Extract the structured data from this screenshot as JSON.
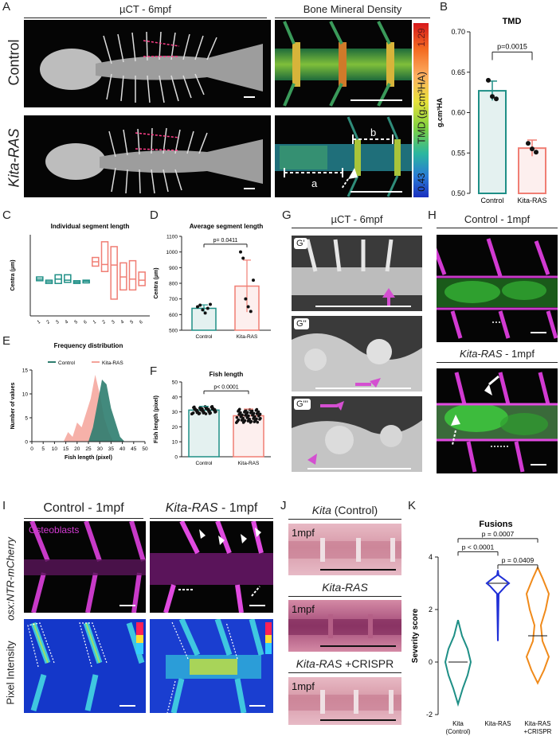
{
  "panel_labels": {
    "A": "A",
    "B": "B",
    "C": "C",
    "D": "D",
    "E": "E",
    "F": "F",
    "G": "G",
    "H": "H",
    "I": "I",
    "J": "J",
    "K": "K"
  },
  "panelA": {
    "header_left": "µCT - 6mpf",
    "header_right": "Bone Mineral Density",
    "row_control": "Control",
    "row_kita": "Kita-RAS",
    "colorbar_label": "TMD (g.cm³HA)",
    "colorbar_max": "1.29",
    "colorbar_min": "0.43",
    "annot_a": "a",
    "annot_b": "b"
  },
  "panelG": {
    "header": "µCT - 6mpf",
    "sub1": "G'",
    "sub2": "G''",
    "sub3": "G'''"
  },
  "panelH": {
    "top": "Control - 1mpf",
    "bottom_it": "Kita-RAS",
    "bottom_rest": " - 1mpf"
  },
  "panelI": {
    "header_left": "Control - 1mpf",
    "header_right_it": "Kita-RAS",
    "header_right_rest": " - 1mpf",
    "row1": "osx:NTR-mCherry",
    "row2": "Pixel Intensity",
    "osteo": "Osteoblasts"
  },
  "panelJ": {
    "h1_it": "Kita",
    "h1_rest": " (Control)",
    "h2": "Kita-RAS",
    "h3_it": "Kita-RAS",
    "h3_rest": " +CRISPR",
    "tag": "1mpf"
  },
  "chart_data": [
    {
      "id": "B",
      "type": "bar",
      "title": "TMD",
      "categories": [
        "Control",
        "Kita-RAS"
      ],
      "values": [
        0.627,
        0.556
      ],
      "errors": [
        0.012,
        0.01
      ],
      "points": [
        [
          0.64,
          0.62,
          0.617
        ],
        [
          0.562,
          0.555,
          0.551
        ]
      ],
      "ylabel": "g.cm³HA",
      "ylim": [
        0.5,
        0.7
      ],
      "yticks": [
        "0.50",
        "0.55",
        "0.60",
        "0.65",
        "0.70"
      ],
      "annotation": "p=0.0015",
      "colors": [
        "#1e8f86",
        "#f07e74"
      ]
    },
    {
      "id": "C",
      "type": "box",
      "title": "Individual segment length",
      "ylabel": "Centra (µm)",
      "ylim": [
        0,
        1500
      ],
      "yticks": [],
      "categories": [
        "1",
        "2",
        "3",
        "4",
        "5",
        "6",
        "1",
        "2",
        "3",
        "4",
        "5",
        "6"
      ],
      "series": [
        {
          "name": "Control",
          "boxes": [
            [
              680,
              650,
              720
            ],
            [
              630,
              600,
              660
            ],
            [
              680,
              600,
              760
            ],
            [
              660,
              620,
              760
            ],
            [
              625,
              600,
              650
            ],
            [
              640,
              610,
              660
            ]
          ]
        },
        {
          "name": "Kita-RAS",
          "boxes": [
            [
              1000,
              920,
              1080
            ],
            [
              950,
              820,
              1370
            ],
            [
              940,
              310,
              1280
            ],
            [
              720,
              480,
              980
            ],
            [
              680,
              480,
              1020
            ],
            [
              660,
              560,
              810
            ]
          ]
        }
      ]
    },
    {
      "id": "D",
      "type": "bar",
      "title": "Average segment length",
      "categories": [
        "Control",
        "Kita-RAS"
      ],
      "values": [
        640,
        782
      ],
      "errors": [
        22,
        166
      ],
      "points": [
        [
          650,
          660,
          630,
          610,
          640,
          665
        ],
        [
          1000,
          960,
          700,
          650,
          620,
          820
        ]
      ],
      "ylabel": "Centra (µm)",
      "ylim": [
        500,
        1100
      ],
      "yticks": [
        "500",
        "600",
        "700",
        "800",
        "900",
        "1000",
        "1100"
      ],
      "annotation": "p= 0.0411",
      "colors": [
        "#1e8f86",
        "#f07e74"
      ]
    },
    {
      "id": "E",
      "type": "area",
      "title": "Frequency distribution",
      "xlabel": "Fish length (pixel)",
      "ylabel": "Number of values",
      "xlim": [
        0,
        50
      ],
      "ylim": [
        0,
        15
      ],
      "xticks": [
        "0",
        "5",
        "10",
        "15",
        "20",
        "25",
        "30",
        "35",
        "40",
        "45",
        "50"
      ],
      "yticks": [
        "0",
        "5",
        "10",
        "15"
      ],
      "series": [
        {
          "name": "Control",
          "x": [
            25,
            27,
            29,
            31,
            33,
            35,
            37,
            39,
            41
          ],
          "y": [
            0,
            3,
            8,
            13,
            12,
            7,
            4,
            1,
            0
          ],
          "color": "#2e7d6f"
        },
        {
          "name": "Kita-RAS",
          "x": [
            14,
            16,
            18,
            20,
            22,
            24,
            26,
            28,
            30,
            32,
            34,
            36
          ],
          "y": [
            0,
            2,
            1,
            4,
            3,
            6,
            9,
            14,
            10,
            5,
            2,
            0
          ],
          "color": "#f4a39a"
        }
      ]
    },
    {
      "id": "F",
      "type": "bar",
      "title": "Fish length",
      "categories": [
        "Control",
        "Kita-RAS"
      ],
      "values": [
        31.2,
        27.4
      ],
      "errors": [
        2.5,
        4.5
      ],
      "ylabel": "Fish length (pixel)",
      "ylim": [
        0,
        50
      ],
      "yticks": [
        "0",
        "10",
        "20",
        "30",
        "40",
        "50"
      ],
      "annotation": "p< 0.0001",
      "colors": [
        "#1e8f86",
        "#f07e74"
      ]
    },
    {
      "id": "K",
      "type": "violin",
      "title": "Fusions",
      "categories": [
        "Kita\n(Control)",
        "Kita-RAS",
        "Kita-RAS\n+CRISPR"
      ],
      "medians": [
        0,
        3,
        1
      ],
      "ylabel": "Severity score",
      "ylim": [
        -2,
        4
      ],
      "yticks": [
        "-2",
        "0",
        "2",
        "4"
      ],
      "annotations": [
        "p = 0.0007",
        "p < 0.0001",
        "p = 0.0409"
      ],
      "colors": [
        "#1e8f86",
        "#1f2fd6",
        "#f08a1a"
      ]
    }
  ]
}
